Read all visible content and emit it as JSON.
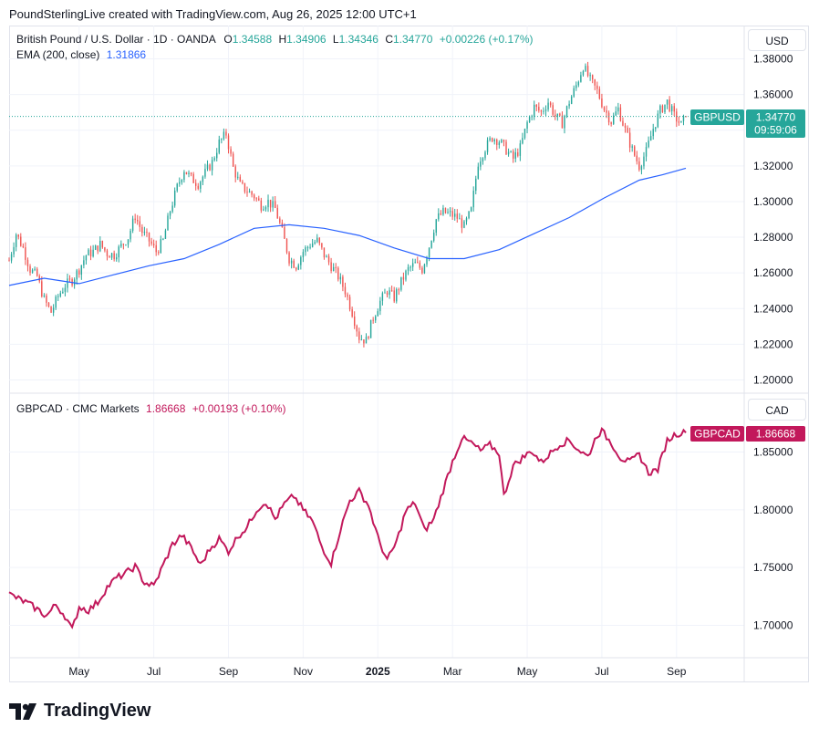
{
  "header": {
    "attribution": "PoundSterlingLive created with TradingView.com, Aug 26, 2025 12:00 UTC+1"
  },
  "brand": {
    "name": "TradingView"
  },
  "colors": {
    "up": "#26a69a",
    "down": "#ef5350",
    "ema": "#2962ff",
    "gbpcad": "#c2185b",
    "axis_text": "#131722",
    "grid": "#f0f3fa"
  },
  "chart_data": [
    {
      "type": "candlestick",
      "symbol": "GBPUSD",
      "title": "British Pound / U.S. Dollar · 1D · OANDA",
      "ohlc": {
        "O": "1.34588",
        "H": "1.34906",
        "L": "1.34346",
        "C": "1.34770",
        "change": "+0.00226 (+0.17%)"
      },
      "O_label": "O",
      "H_label": "H",
      "L_label": "L",
      "C_label": "C",
      "indicator": {
        "label": "EMA (200, close)",
        "value": "1.31866"
      },
      "currency": "USD",
      "price_tag": {
        "symbol": "GBPUSD",
        "value": "1.34770",
        "countdown": "09:59:06"
      },
      "y_ticks": [
        "1.20000",
        "1.22000",
        "1.24000",
        "1.26000",
        "1.28000",
        "1.30000",
        "1.32000",
        "1.34000",
        "1.36000",
        "1.38000"
      ],
      "ylim": [
        1.195,
        1.385
      ],
      "close_series": [
        {
          "t": 0,
          "v": 1.267
        },
        {
          "t": 3,
          "v": 1.282
        },
        {
          "t": 6,
          "v": 1.274
        },
        {
          "t": 9,
          "v": 1.262
        },
        {
          "t": 12,
          "v": 1.258
        },
        {
          "t": 15,
          "v": 1.245
        },
        {
          "t": 18,
          "v": 1.238
        },
        {
          "t": 21,
          "v": 1.247
        },
        {
          "t": 24,
          "v": 1.253
        },
        {
          "t": 27,
          "v": 1.256
        },
        {
          "t": 30,
          "v": 1.262
        },
        {
          "t": 33,
          "v": 1.27
        },
        {
          "t": 36,
          "v": 1.272
        },
        {
          "t": 39,
          "v": 1.276
        },
        {
          "t": 42,
          "v": 1.271
        },
        {
          "t": 45,
          "v": 1.27
        },
        {
          "t": 48,
          "v": 1.275
        },
        {
          "t": 51,
          "v": 1.28
        },
        {
          "t": 54,
          "v": 1.292
        },
        {
          "t": 57,
          "v": 1.283
        },
        {
          "t": 60,
          "v": 1.278
        },
        {
          "t": 63,
          "v": 1.272
        },
        {
          "t": 66,
          "v": 1.278
        },
        {
          "t": 69,
          "v": 1.295
        },
        {
          "t": 72,
          "v": 1.308
        },
        {
          "t": 75,
          "v": 1.318
        },
        {
          "t": 78,
          "v": 1.313
        },
        {
          "t": 81,
          "v": 1.31
        },
        {
          "t": 84,
          "v": 1.316
        },
        {
          "t": 87,
          "v": 1.322
        },
        {
          "t": 90,
          "v": 1.333
        },
        {
          "t": 93,
          "v": 1.338
        },
        {
          "t": 96,
          "v": 1.319
        },
        {
          "t": 99,
          "v": 1.309
        },
        {
          "t": 102,
          "v": 1.306
        },
        {
          "t": 105,
          "v": 1.303
        },
        {
          "t": 108,
          "v": 1.298
        },
        {
          "t": 111,
          "v": 1.3
        },
        {
          "t": 114,
          "v": 1.296
        },
        {
          "t": 117,
          "v": 1.283
        },
        {
          "t": 120,
          "v": 1.268
        },
        {
          "t": 123,
          "v": 1.264
        },
        {
          "t": 126,
          "v": 1.272
        },
        {
          "t": 129,
          "v": 1.276
        },
        {
          "t": 132,
          "v": 1.278
        },
        {
          "t": 135,
          "v": 1.27
        },
        {
          "t": 138,
          "v": 1.264
        },
        {
          "t": 141,
          "v": 1.258
        },
        {
          "t": 144,
          "v": 1.25
        },
        {
          "t": 147,
          "v": 1.238
        },
        {
          "t": 150,
          "v": 1.224
        },
        {
          "t": 153,
          "v": 1.222
        },
        {
          "t": 156,
          "v": 1.235
        },
        {
          "t": 159,
          "v": 1.244
        },
        {
          "t": 162,
          "v": 1.25
        },
        {
          "t": 165,
          "v": 1.246
        },
        {
          "t": 168,
          "v": 1.255
        },
        {
          "t": 171,
          "v": 1.262
        },
        {
          "t": 174,
          "v": 1.265
        },
        {
          "t": 177,
          "v": 1.262
        },
        {
          "t": 180,
          "v": 1.275
        },
        {
          "t": 183,
          "v": 1.29
        },
        {
          "t": 186,
          "v": 1.294
        },
        {
          "t": 189,
          "v": 1.293
        },
        {
          "t": 192,
          "v": 1.291
        },
        {
          "t": 195,
          "v": 1.286
        },
        {
          "t": 198,
          "v": 1.295
        },
        {
          "t": 201,
          "v": 1.322
        },
        {
          "t": 204,
          "v": 1.33
        },
        {
          "t": 207,
          "v": 1.336
        },
        {
          "t": 210,
          "v": 1.334
        },
        {
          "t": 213,
          "v": 1.329
        },
        {
          "t": 216,
          "v": 1.324
        },
        {
          "t": 219,
          "v": 1.33
        },
        {
          "t": 222,
          "v": 1.344
        },
        {
          "t": 225,
          "v": 1.353
        },
        {
          "t": 228,
          "v": 1.35
        },
        {
          "t": 231,
          "v": 1.356
        },
        {
          "t": 234,
          "v": 1.348
        },
        {
          "t": 237,
          "v": 1.344
        },
        {
          "t": 240,
          "v": 1.356
        },
        {
          "t": 243,
          "v": 1.365
        },
        {
          "t": 246,
          "v": 1.376
        },
        {
          "t": 249,
          "v": 1.368
        },
        {
          "t": 252,
          "v": 1.362
        },
        {
          "t": 255,
          "v": 1.352
        },
        {
          "t": 258,
          "v": 1.345
        },
        {
          "t": 261,
          "v": 1.352
        },
        {
          "t": 264,
          "v": 1.34
        },
        {
          "t": 267,
          "v": 1.329
        },
        {
          "t": 270,
          "v": 1.32
        },
        {
          "t": 273,
          "v": 1.328
        },
        {
          "t": 276,
          "v": 1.341
        },
        {
          "t": 279,
          "v": 1.351
        },
        {
          "t": 282,
          "v": 1.356
        },
        {
          "t": 285,
          "v": 1.348
        },
        {
          "t": 288,
          "v": 1.343
        },
        {
          "t": 290,
          "v": 1.3477
        }
      ],
      "ema_series": [
        {
          "t": 0,
          "v": 1.253
        },
        {
          "t": 15,
          "v": 1.257
        },
        {
          "t": 30,
          "v": 1.254
        },
        {
          "t": 45,
          "v": 1.259
        },
        {
          "t": 60,
          "v": 1.264
        },
        {
          "t": 75,
          "v": 1.268
        },
        {
          "t": 90,
          "v": 1.276
        },
        {
          "t": 105,
          "v": 1.285
        },
        {
          "t": 120,
          "v": 1.287
        },
        {
          "t": 135,
          "v": 1.285
        },
        {
          "t": 150,
          "v": 1.281
        },
        {
          "t": 165,
          "v": 1.274
        },
        {
          "t": 180,
          "v": 1.268
        },
        {
          "t": 195,
          "v": 1.268
        },
        {
          "t": 210,
          "v": 1.273
        },
        {
          "t": 225,
          "v": 1.282
        },
        {
          "t": 240,
          "v": 1.291
        },
        {
          "t": 255,
          "v": 1.302
        },
        {
          "t": 270,
          "v": 1.312
        },
        {
          "t": 280,
          "v": 1.315
        },
        {
          "t": 290,
          "v": 1.3187
        }
      ]
    },
    {
      "type": "line",
      "symbol": "GBPCAD",
      "title": "GBPCAD · CMC Markets",
      "last": "1.86668",
      "change": "+0.00193 (+0.10%)",
      "currency": "CAD",
      "price_tag": {
        "symbol": "GBPCAD",
        "value": "1.86668"
      },
      "y_ticks": [
        "1.70000",
        "1.75000",
        "1.80000",
        "1.85000"
      ],
      "ylim": [
        1.672,
        1.876
      ],
      "series": [
        {
          "t": 0,
          "v": 1.727
        },
        {
          "t": 4,
          "v": 1.723
        },
        {
          "t": 8,
          "v": 1.719
        },
        {
          "t": 12,
          "v": 1.714
        },
        {
          "t": 16,
          "v": 1.708
        },
        {
          "t": 20,
          "v": 1.718
        },
        {
          "t": 24,
          "v": 1.708
        },
        {
          "t": 27,
          "v": 1.696
        },
        {
          "t": 30,
          "v": 1.716
        },
        {
          "t": 34,
          "v": 1.713
        },
        {
          "t": 38,
          "v": 1.72
        },
        {
          "t": 42,
          "v": 1.733
        },
        {
          "t": 46,
          "v": 1.741
        },
        {
          "t": 50,
          "v": 1.745
        },
        {
          "t": 54,
          "v": 1.751
        },
        {
          "t": 58,
          "v": 1.737
        },
        {
          "t": 62,
          "v": 1.734
        },
        {
          "t": 66,
          "v": 1.752
        },
        {
          "t": 70,
          "v": 1.77
        },
        {
          "t": 74,
          "v": 1.778
        },
        {
          "t": 78,
          "v": 1.767
        },
        {
          "t": 82,
          "v": 1.752
        },
        {
          "t": 86,
          "v": 1.766
        },
        {
          "t": 90,
          "v": 1.775
        },
        {
          "t": 94,
          "v": 1.764
        },
        {
          "t": 98,
          "v": 1.777
        },
        {
          "t": 102,
          "v": 1.785
        },
        {
          "t": 106,
          "v": 1.8
        },
        {
          "t": 110,
          "v": 1.807
        },
        {
          "t": 114,
          "v": 1.792
        },
        {
          "t": 118,
          "v": 1.805
        },
        {
          "t": 122,
          "v": 1.812
        },
        {
          "t": 126,
          "v": 1.8
        },
        {
          "t": 130,
          "v": 1.79
        },
        {
          "t": 134,
          "v": 1.768
        },
        {
          "t": 138,
          "v": 1.754
        },
        {
          "t": 142,
          "v": 1.783
        },
        {
          "t": 146,
          "v": 1.808
        },
        {
          "t": 150,
          "v": 1.816
        },
        {
          "t": 154,
          "v": 1.804
        },
        {
          "t": 158,
          "v": 1.776
        },
        {
          "t": 162,
          "v": 1.756
        },
        {
          "t": 166,
          "v": 1.772
        },
        {
          "t": 170,
          "v": 1.799
        },
        {
          "t": 174,
          "v": 1.806
        },
        {
          "t": 178,
          "v": 1.782
        },
        {
          "t": 182,
          "v": 1.792
        },
        {
          "t": 186,
          "v": 1.817
        },
        {
          "t": 190,
          "v": 1.842
        },
        {
          "t": 194,
          "v": 1.862
        },
        {
          "t": 198,
          "v": 1.858
        },
        {
          "t": 202,
          "v": 1.851
        },
        {
          "t": 206,
          "v": 1.856
        },
        {
          "t": 210,
          "v": 1.849
        },
        {
          "t": 212,
          "v": 1.812
        },
        {
          "t": 216,
          "v": 1.838
        },
        {
          "t": 220,
          "v": 1.845
        },
        {
          "t": 224,
          "v": 1.851
        },
        {
          "t": 228,
          "v": 1.841
        },
        {
          "t": 232,
          "v": 1.849
        },
        {
          "t": 236,
          "v": 1.857
        },
        {
          "t": 240,
          "v": 1.86
        },
        {
          "t": 244,
          "v": 1.852
        },
        {
          "t": 248,
          "v": 1.846
        },
        {
          "t": 252,
          "v": 1.865
        },
        {
          "t": 254,
          "v": 1.868
        },
        {
          "t": 258,
          "v": 1.858
        },
        {
          "t": 262,
          "v": 1.845
        },
        {
          "t": 266,
          "v": 1.841
        },
        {
          "t": 270,
          "v": 1.848
        },
        {
          "t": 274,
          "v": 1.832
        },
        {
          "t": 278,
          "v": 1.835
        },
        {
          "t": 282,
          "v": 1.86
        },
        {
          "t": 286,
          "v": 1.866
        },
        {
          "t": 290,
          "v": 1.8667
        }
      ]
    }
  ],
  "x_axis": {
    "ticks": [
      {
        "label": "May",
        "t": 30,
        "bold": false
      },
      {
        "label": "Jul",
        "t": 62,
        "bold": false
      },
      {
        "label": "Sep",
        "t": 94,
        "bold": false
      },
      {
        "label": "Nov",
        "t": 126,
        "bold": false
      },
      {
        "label": "2025",
        "t": 158,
        "bold": true
      },
      {
        "label": "Mar",
        "t": 190,
        "bold": false
      },
      {
        "label": "May",
        "t": 222,
        "bold": false
      },
      {
        "label": "Jul",
        "t": 254,
        "bold": false
      },
      {
        "label": "Sep",
        "t": 286,
        "bold": false
      }
    ],
    "xlim": [
      0,
      315
    ]
  }
}
